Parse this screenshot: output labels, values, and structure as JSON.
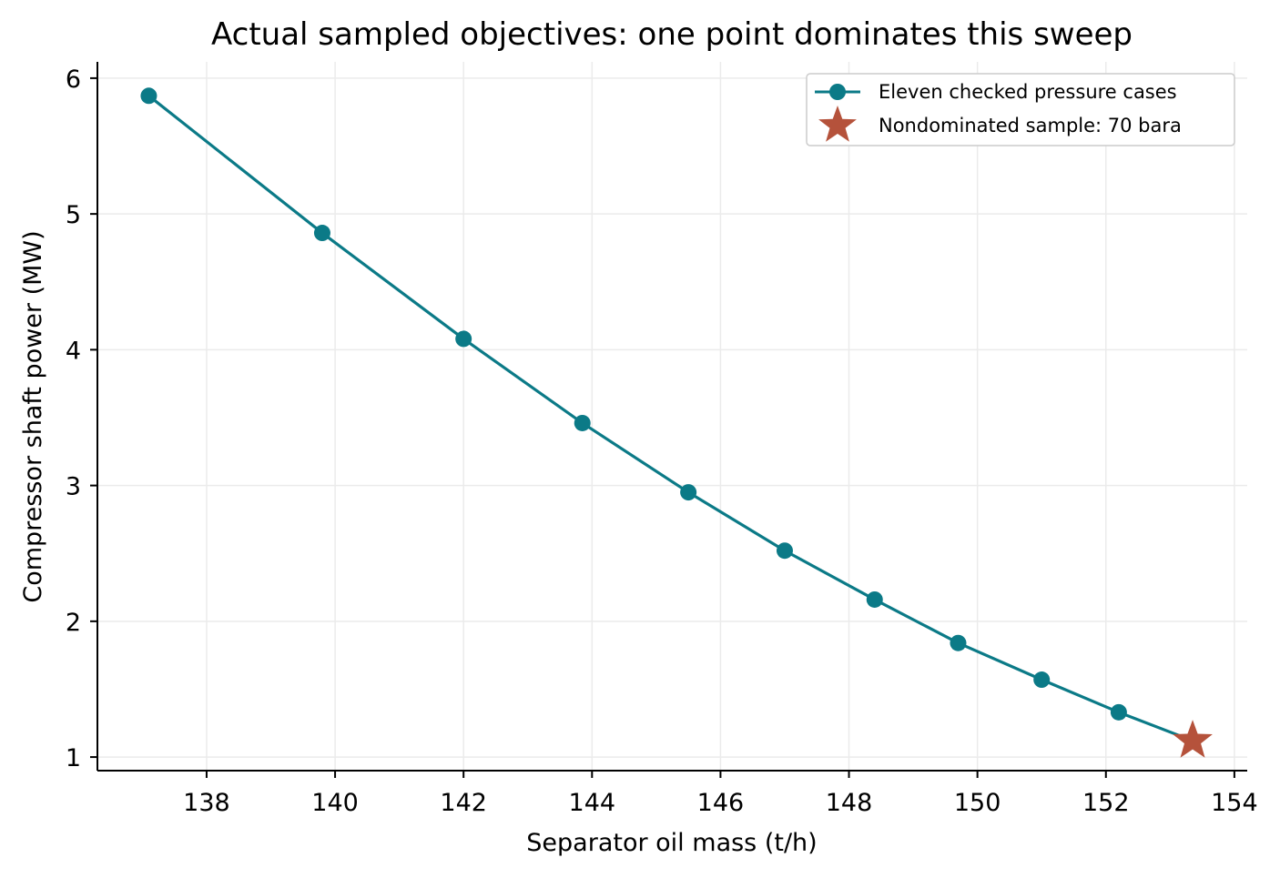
{
  "chart_data": {
    "type": "line",
    "title": "Actual sampled objectives: one point dominates this sweep",
    "xlabel": "Separator oil mass (t/h)",
    "ylabel": "Compressor shaft power (MW)",
    "xlim": [
      136.3,
      154.2
    ],
    "ylim": [
      0.9,
      6.12
    ],
    "x_ticks": [
      138,
      140,
      142,
      144,
      146,
      148,
      150,
      152,
      154
    ],
    "y_ticks": [
      1,
      2,
      3,
      4,
      5,
      6
    ],
    "grid": true,
    "legend_position": "top-right",
    "series": [
      {
        "name": "Eleven checked pressure cases",
        "color": "#0b7a87",
        "marker": "circle",
        "x": [
          137.1,
          139.8,
          142.0,
          143.85,
          145.5,
          147.0,
          148.4,
          149.7,
          151.0,
          152.2,
          153.35
        ],
        "y": [
          5.87,
          4.86,
          4.08,
          3.46,
          2.95,
          2.52,
          2.16,
          1.84,
          1.57,
          1.33,
          1.12
        ]
      },
      {
        "name": "Nondominated sample: 70 bara",
        "color": "#b5523b",
        "marker": "star",
        "x": [
          153.35
        ],
        "y": [
          1.12
        ]
      }
    ]
  }
}
